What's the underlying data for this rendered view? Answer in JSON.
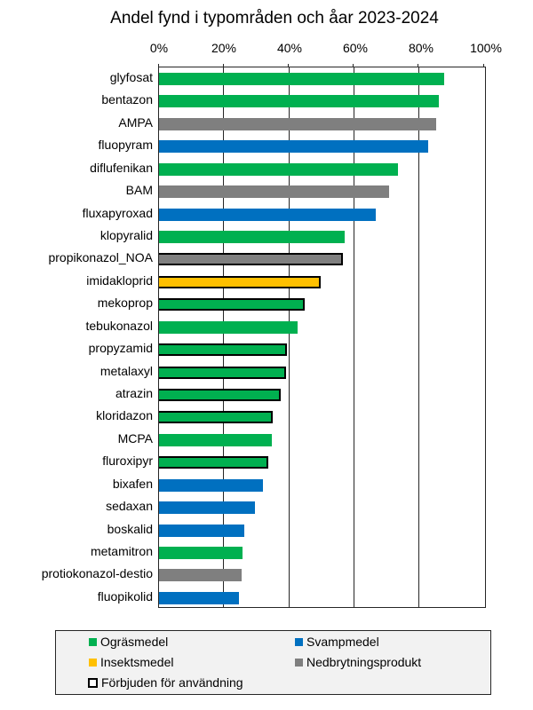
{
  "chart_data": {
    "type": "bar",
    "orientation": "horizontal",
    "title": "Andel fynd i typområden och åar 2023-2024",
    "xlabel": "",
    "ylabel": "",
    "xlim": [
      0,
      100
    ],
    "x_ticks": [
      "0%",
      "20%",
      "40%",
      "60%",
      "80%",
      "100%"
    ],
    "x_axis_position": "top",
    "grid": true,
    "legend_position": "bottom",
    "categories": [
      "glyfosat",
      "bentazon",
      "AMPA",
      "fluopyram",
      "diflufenikan",
      "BAM",
      "fluxapyroxad",
      "klopyralid",
      "propikonazol_NOA",
      "imidakloprid",
      "mekoprop",
      "tebukonazol",
      "propyzamid",
      "metalaxyl",
      "atrazin",
      "kloridazon",
      "MCPA",
      "fluroxipyr",
      "bixafen",
      "sedaxan",
      "boskalid",
      "metamitron",
      "protiokonazol-destio",
      "fluopikolid"
    ],
    "values": [
      87.8,
      86.1,
      85.3,
      82.9,
      73.4,
      70.7,
      66.8,
      57.1,
      56.5,
      49.7,
      44.8,
      42.6,
      39.4,
      39.1,
      37.5,
      35.0,
      34.8,
      33.7,
      32.1,
      29.6,
      26.1,
      25.8,
      25.3,
      24.7
    ],
    "types": [
      "Ogräsmedel",
      "Ogräsmedel",
      "Nedbrytningsprodukt",
      "Svampmedel",
      "Ogräsmedel",
      "Nedbrytningsprodukt",
      "Svampmedel",
      "Ogräsmedel",
      "Nedbrytningsprodukt",
      "Insektsmedel",
      "Ogräsmedel",
      "Ogräsmedel",
      "Ogräsmedel",
      "Ogräsmedel",
      "Ogräsmedel",
      "Ogräsmedel",
      "Ogräsmedel",
      "Ogräsmedel",
      "Svampmedel",
      "Svampmedel",
      "Svampmedel",
      "Ogräsmedel",
      "Nedbrytningsprodukt",
      "Svampmedel"
    ],
    "banned": [
      false,
      false,
      false,
      false,
      false,
      false,
      false,
      false,
      true,
      true,
      true,
      false,
      true,
      true,
      true,
      true,
      false,
      true,
      false,
      false,
      false,
      false,
      false,
      false
    ],
    "legend": [
      {
        "label": "Ogräsmedel",
        "color": "#00B050"
      },
      {
        "label": "Svampmedel",
        "color": "#0070C0"
      },
      {
        "label": "Insektsmedel",
        "color": "#FFC000"
      },
      {
        "label": "Nedbrytningsprodukt",
        "color": "#7F7F7F"
      },
      {
        "label": "Förbjuden för användning",
        "style": "black-outline"
      }
    ],
    "colors": {
      "Ogräsmedel": "#00B050",
      "Svampmedel": "#0070C0",
      "Insektsmedel": "#FFC000",
      "Nedbrytningsprodukt": "#7F7F7F"
    }
  }
}
